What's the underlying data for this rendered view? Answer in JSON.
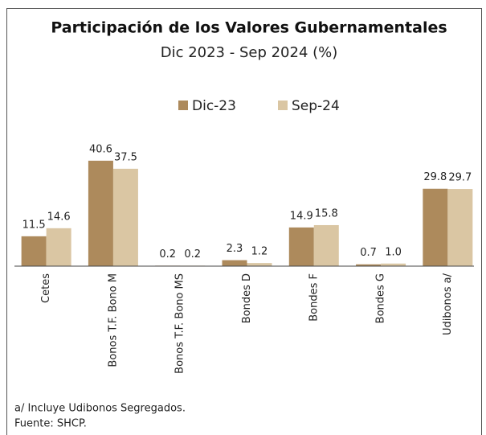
{
  "chart_data": {
    "type": "bar",
    "title": "Participación de los Valores Gubernamentales",
    "subtitle": "Dic 2023 - Sep 2024 (%)",
    "categories": [
      "Cetes",
      "Bonos T.F. Bono M",
      "Bonos T.F. Bono MS",
      "Bondes D",
      "Bondes F",
      "Bondes G",
      "Udibonos a/"
    ],
    "series": [
      {
        "name": "Dic-23",
        "color": "#ad8a5c",
        "values": [
          11.5,
          40.6,
          0.2,
          2.3,
          14.9,
          0.7,
          29.8
        ],
        "value_labels": [
          "11.5",
          "40.6",
          "0.2",
          "2.3",
          "14.9",
          "0.7",
          "29.8"
        ]
      },
      {
        "name": "Sep-24",
        "color": "#dac6a3",
        "values": [
          14.6,
          37.5,
          0.2,
          1.2,
          15.8,
          1.0,
          29.7
        ],
        "value_labels": [
          "14.6",
          "37.5",
          "0.2",
          "1.2",
          "15.8",
          "1.0",
          "29.7"
        ]
      }
    ],
    "notes": [
      "a/ Incluye Udibonos Segregados.",
      "Fuente: SHCP."
    ]
  }
}
